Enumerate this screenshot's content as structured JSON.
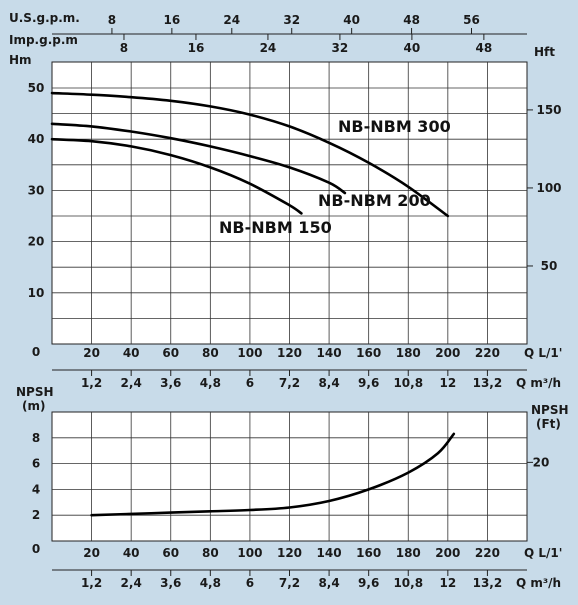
{
  "chart_data": [
    {
      "type": "line",
      "ylabel_left": "Hm",
      "ylabel_right": "Hft",
      "xlabel": "Q L/1'",
      "xlabel_secondary": "Q m³/h",
      "top_axis_1_label": "U.S.g.p.m.",
      "top_axis_2_label": "Imp.g.p.m",
      "origin_label": "0",
      "xlim": [
        0,
        240
      ],
      "ylim": [
        0,
        50
      ],
      "x_ticks": [
        "20",
        "40",
        "60",
        "80",
        "100",
        "120",
        "140",
        "160",
        "180",
        "200",
        "220"
      ],
      "x_secondary_ticks": [
        "1,2",
        "2,4",
        "3,6",
        "4,8",
        "6",
        "7,2",
        "8,4",
        "9,6",
        "10,8",
        "12",
        "13,2"
      ],
      "top_axis_1_ticks": [
        "8",
        "16",
        "24",
        "32",
        "40",
        "48",
        "56"
      ],
      "top_axis_2_ticks": [
        "8",
        "16",
        "24",
        "32",
        "40",
        "48"
      ],
      "y_ticks": [
        "10",
        "20",
        "30",
        "40",
        "50"
      ],
      "y_right_ticks": [
        "50",
        "100",
        "150"
      ],
      "series": [
        {
          "name": "NB-NBM 300",
          "x": [
            0,
            20,
            40,
            60,
            80,
            100,
            120,
            140,
            160,
            180,
            200
          ],
          "y": [
            49.0,
            48.7,
            48.2,
            47.5,
            46.4,
            44.8,
            42.5,
            39.3,
            35.4,
            30.7,
            25.0
          ]
        },
        {
          "name": "NB-NBM 200",
          "x": [
            0,
            20,
            40,
            60,
            80,
            100,
            120,
            140,
            148
          ],
          "y": [
            43.0,
            42.5,
            41.5,
            40.2,
            38.6,
            36.7,
            34.5,
            31.5,
            29.5
          ]
        },
        {
          "name": "NB-NBM 150",
          "x": [
            0,
            20,
            40,
            60,
            80,
            100,
            120,
            126
          ],
          "y": [
            40.0,
            39.6,
            38.6,
            36.9,
            34.5,
            31.3,
            27.1,
            25.5
          ]
        }
      ],
      "grid": true
    },
    {
      "type": "line",
      "ylabel_left": "NPSH (m)",
      "ylabel_right": "NPSH (Ft)",
      "xlabel": "Q L/1'",
      "xlabel_secondary": "Q m³/h",
      "origin_label": "0",
      "xlim": [
        0,
        240
      ],
      "ylim": [
        0,
        10
      ],
      "x_ticks": [
        "20",
        "40",
        "60",
        "80",
        "100",
        "120",
        "140",
        "160",
        "180",
        "200",
        "220"
      ],
      "x_secondary_ticks": [
        "1,2",
        "2,4",
        "3,6",
        "4,8",
        "6",
        "7,2",
        "8,4",
        "9,6",
        "10,8",
        "12",
        "13,2"
      ],
      "y_ticks": [
        "2",
        "4",
        "6",
        "8"
      ],
      "y_right_ticks": [
        "20"
      ],
      "series": [
        {
          "name": "",
          "x": [
            20,
            40,
            60,
            80,
            100,
            120,
            140,
            160,
            180,
            195,
            203
          ],
          "y": [
            2.0,
            2.1,
            2.2,
            2.3,
            2.4,
            2.6,
            3.1,
            4.0,
            5.3,
            6.8,
            8.3
          ]
        }
      ],
      "grid": true
    }
  ]
}
